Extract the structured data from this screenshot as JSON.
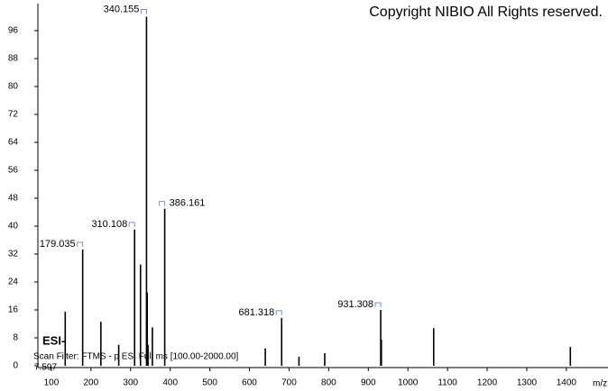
{
  "chart_data": {
    "type": "spectrum",
    "copyright": "Copyright NIBIO All Rights reserved.",
    "ionization": "ESI-",
    "scan_filter": "Scan Filter: FTMS - p ESI Full ms [100.00-2000.00]",
    "retention": "7.597",
    "x_label": "m/z",
    "x": [
      135,
      179.035,
      225,
      270,
      310.108,
      325,
      340.155,
      342,
      344,
      355,
      386.161,
      640,
      681.318,
      725,
      790,
      931.308,
      933,
      1065,
      1410
    ],
    "values": [
      15.5,
      33.3,
      12.6,
      6,
      39,
      29,
      100,
      21,
      6,
      11,
      45,
      5,
      13.7,
      2.6,
      3.6,
      16,
      7.5,
      10.8,
      5.4
    ],
    "peak_labels": [
      null,
      "179.035",
      null,
      null,
      "310.108",
      null,
      "340.155",
      null,
      null,
      null,
      "386.161",
      null,
      "681.318",
      null,
      null,
      "931.308",
      null,
      null,
      null
    ],
    "color": "#000000",
    "label_color": "#1f2a8c",
    "xlim": [
      66,
      1505
    ],
    "ylim": [
      0,
      100
    ],
    "xticks": [
      100,
      200,
      300,
      400,
      500,
      600,
      700,
      800,
      900,
      1000,
      1100,
      1200,
      1300,
      1400
    ],
    "yticks": [
      0,
      8,
      16,
      24,
      32,
      40,
      48,
      56,
      64,
      72,
      80,
      88,
      96
    ]
  }
}
